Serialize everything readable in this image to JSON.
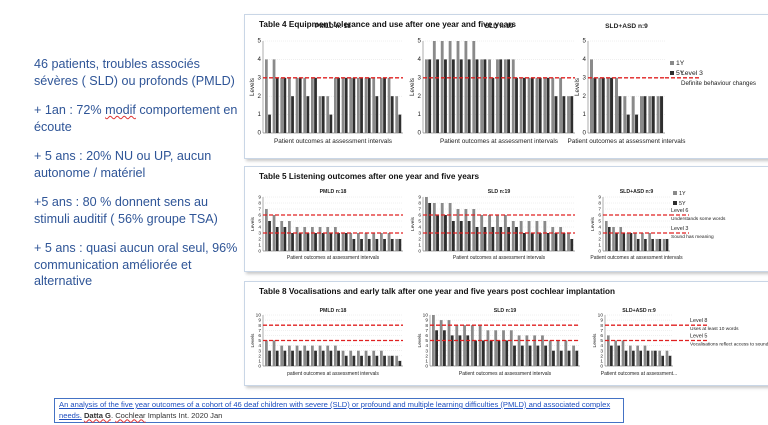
{
  "left_text": {
    "p1": "46 patients, troubles associés sévères ( SLD) ou profonds (PMLD)",
    "p2_prefix": "+ 1an : 72% ",
    "p2_underlined": "modif",
    "p2_suffix": " comportement en écoute",
    "p3": "+ 5 ans  :  20% NU ou UP, aucun autonome / matériel",
    "p4": "+5 ans : 80 % donnent sens au stimuli auditif  ( 56% groupe TSA)",
    "p5": "+ 5 ans : quasi aucun oral seul, 96% communication améliorée et alternative"
  },
  "citation": {
    "link_text": "An analysis of the five year outcomes of a cohort of 46 deaf children with severe (SLD) or profound and multiple learning difficulties (PMLD) and associated complex needs.",
    "author_prefix": " ",
    "author_bold": "Datta G",
    "author_suffix": ". ",
    "journal_underlined": "Cochlear",
    "journal_rest": " Implants Int. 2020 Jan"
  },
  "colors": {
    "text_blue": "#2f5597",
    "bar_1y": "#8a8a8a",
    "bar_5y": "#2e2e2e",
    "threshold_red": "#e02020"
  },
  "chart_data": [
    {
      "type": "bar",
      "title": "Table 4   Equipment tolerance and use after one year and five years",
      "ylabel": "Levels",
      "xlabel": "Patient outcomes at assessment intervals",
      "legend": [
        "1Y",
        "5Y"
      ],
      "ylim": [
        0,
        5
      ],
      "yticks": [
        "0",
        "1",
        "2",
        "3",
        "4",
        "5"
      ],
      "thresholds": [
        {
          "value": 3,
          "label": "Level 3",
          "desc": "Definite  behaviour changes"
        }
      ],
      "groups": [
        {
          "name": "PMLD n: 18",
          "series": [
            {
              "name": "1Y",
              "values": [
                4,
                4,
                3,
                3,
                3,
                3,
                3,
                2,
                2,
                3,
                3,
                3,
                3,
                3,
                3,
                3,
                3,
                2
              ]
            },
            {
              "name": "5Y",
              "values": [
                1,
                3,
                3,
                2,
                3,
                2,
                3,
                2,
                1,
                3,
                3,
                3,
                3,
                3,
                2,
                3,
                2,
                1
              ]
            }
          ]
        },
        {
          "name": "SLD n:19",
          "series": [
            {
              "name": "1Y",
              "values": [
                4,
                5,
                5,
                5,
                5,
                5,
                5,
                4,
                4,
                4,
                4,
                4,
                3,
                3,
                3,
                3,
                3,
                3,
                2
              ]
            },
            {
              "name": "5Y",
              "values": [
                4,
                4,
                4,
                4,
                4,
                4,
                4,
                4,
                3,
                4,
                4,
                3,
                3,
                3,
                3,
                3,
                2,
                2,
                2
              ]
            }
          ]
        },
        {
          "name": "SLD+ASD n:9",
          "series": [
            {
              "name": "1Y",
              "values": [
                4,
                3,
                3,
                3,
                2,
                2,
                2,
                2,
                2
              ]
            },
            {
              "name": "5Y",
              "values": [
                3,
                3,
                3,
                2,
                1,
                1,
                2,
                2,
                2
              ]
            }
          ]
        }
      ]
    },
    {
      "type": "bar",
      "title": "Table 5   Listening outcomes after one year and five years",
      "ylabel": "Levels",
      "xlabel": "Patient outcomes at assessment intervals",
      "legend": [
        "1Y",
        "5Y"
      ],
      "ylim": [
        0,
        9
      ],
      "yticks": [
        "0",
        "1",
        "2",
        "3",
        "4",
        "5",
        "6",
        "7",
        "8",
        "9"
      ],
      "thresholds": [
        {
          "value": 6,
          "label": "Level 6",
          "desc": "Understands some words"
        },
        {
          "value": 3,
          "label": "Level 3",
          "desc": "Sound has meaning"
        }
      ],
      "groups": [
        {
          "name": "PMLD n:18",
          "series": [
            {
              "name": "1Y",
              "values": [
                7,
                6,
                5,
                5,
                4,
                4,
                4,
                4,
                4,
                4,
                3,
                3,
                3,
                3,
                3,
                3,
                3,
                2
              ]
            },
            {
              "name": "5Y",
              "values": [
                5,
                4,
                4,
                3,
                3,
                3,
                3,
                3,
                3,
                3,
                3,
                2,
                2,
                2,
                2,
                2,
                2,
                2
              ]
            }
          ]
        },
        {
          "name": "SLD n:19",
          "series": [
            {
              "name": "1Y",
              "values": [
                9,
                8,
                8,
                8,
                7,
                7,
                7,
                6,
                6,
                6,
                6,
                5,
                5,
                5,
                5,
                5,
                4,
                4,
                3
              ]
            },
            {
              "name": "5Y",
              "values": [
                8,
                6,
                6,
                5,
                5,
                5,
                4,
                4,
                4,
                4,
                4,
                4,
                3,
                3,
                3,
                3,
                3,
                3,
                2
              ]
            }
          ]
        },
        {
          "name": "SLD+ASD n:9",
          "series": [
            {
              "name": "1Y",
              "values": [
                5,
                4,
                4,
                3,
                3,
                3,
                3,
                2,
                2
              ]
            },
            {
              "name": "5Y",
              "values": [
                4,
                3,
                3,
                3,
                2,
                2,
                2,
                2,
                2
              ]
            }
          ]
        }
      ]
    },
    {
      "type": "bar",
      "title": "Table 8   Vocalisations and early talk after one year and five years post cochlear implantation",
      "ylabel": "Levels",
      "xlabel": "patient outcomes at assessment intervals",
      "xlabels_by_group": [
        "patient outcomes at assessment intervals",
        "Patient outcomes at assessment intervals",
        "Patient outcomes at assessment..."
      ],
      "legend": [
        "1Y",
        "5Y"
      ],
      "ylim": [
        0,
        10
      ],
      "yticks": [
        "0",
        "1",
        "2",
        "3",
        "4",
        "5",
        "6",
        "7",
        "8",
        "9",
        "10"
      ],
      "thresholds": [
        {
          "value": 8,
          "label": "Level 8",
          "desc": "Uses at least 10 words"
        },
        {
          "value": 5,
          "label": "Level 5",
          "desc": "Vocalisations reflect access to sound"
        }
      ],
      "groups": [
        {
          "name": "PMLD n:18",
          "series": [
            {
              "name": "1Y",
              "values": [
                5,
                5,
                4,
                4,
                4,
                4,
                4,
                4,
                4,
                4,
                3,
                3,
                3,
                3,
                3,
                3,
                2,
                2
              ]
            },
            {
              "name": "5Y",
              "values": [
                3,
                3,
                3,
                3,
                3,
                3,
                3,
                3,
                3,
                3,
                2,
                2,
                2,
                2,
                2,
                2,
                2,
                1
              ]
            }
          ]
        },
        {
          "name": "SLD n:19",
          "series": [
            {
              "name": "1Y",
              "values": [
                10,
                9,
                9,
                8,
                8,
                8,
                8,
                7,
                7,
                7,
                7,
                6,
                6,
                6,
                6,
                5,
                5,
                5,
                4
              ]
            },
            {
              "name": "5Y",
              "values": [
                7,
                7,
                6,
                6,
                6,
                5,
                5,
                5,
                5,
                5,
                4,
                4,
                4,
                4,
                4,
                3,
                3,
                3,
                3
              ]
            }
          ]
        },
        {
          "name": "SLD+ASD n:9",
          "series": [
            {
              "name": "1Y",
              "values": [
                6,
                5,
                5,
                4,
                4,
                4,
                3,
                3,
                3
              ]
            },
            {
              "name": "5Y",
              "values": [
                4,
                4,
                3,
                3,
                3,
                3,
                3,
                2,
                2
              ]
            }
          ]
        }
      ]
    }
  ]
}
